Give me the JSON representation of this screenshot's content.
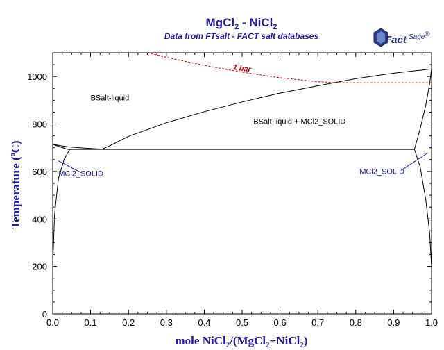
{
  "chart_data": {
    "type": "line",
    "title": {
      "main": "MgCl",
      "sub1": "2",
      "mid": " - NiCl",
      "sub2": "2"
    },
    "subtitle": "Data from FTsalt - FACT salt databases",
    "xlabel": {
      "p1": "mole NiCl",
      "s1": "2",
      "p2": "/(MgCl",
      "s2": "2",
      "p3": "+NiCl",
      "s3": "2",
      "p4": ")"
    },
    "ylabel": {
      "p1": "Temperature (",
      "deg": "o",
      "p2": "C)"
    },
    "xlim": [
      0,
      1
    ],
    "ylim": [
      0,
      1100
    ],
    "x_ticks": [
      "0.0",
      "0.1",
      "0.2",
      "0.3",
      "0.4",
      "0.5",
      "0.6",
      "0.7",
      "0.8",
      "0.9",
      "1.0"
    ],
    "x_tick_values": [
      0,
      0.1,
      0.2,
      0.3,
      0.4,
      0.5,
      0.6,
      0.7,
      0.8,
      0.9,
      1.0
    ],
    "y_ticks": [
      "0",
      "200",
      "400",
      "600",
      "800",
      "1000"
    ],
    "y_tick_values": [
      0,
      200,
      400,
      600,
      800,
      1000
    ],
    "grid": false,
    "series": [
      {
        "style": "liquidus-left",
        "color": "#000000",
        "x": [
          0.0,
          0.04,
          0.08,
          0.13
        ],
        "y": [
          714,
          704,
          699,
          694
        ]
      },
      {
        "style": "liquidus-right",
        "color": "#000000",
        "x": [
          0.13,
          0.15,
          0.2,
          0.3,
          0.4,
          0.5,
          0.6,
          0.7,
          0.8,
          0.9,
          1.0
        ],
        "y": [
          694,
          708,
          748,
          805,
          852,
          893,
          930,
          961,
          991,
          1014,
          1032
        ]
      },
      {
        "style": "solidus-mg",
        "color": "#000000",
        "x": [
          0.0,
          0.04,
          0.13
        ],
        "y": [
          714,
          693,
          693
        ]
      },
      {
        "style": "solvus-mg",
        "color": "#000000",
        "x": [
          0.0,
          0.005,
          0.015,
          0.03,
          0.045
        ],
        "y": [
          200,
          420,
          570,
          650,
          693
        ]
      },
      {
        "style": "eutectic-line",
        "color": "#000000",
        "x": [
          0.13,
          0.955
        ],
        "y": [
          693,
          693
        ]
      },
      {
        "style": "solidus-ni",
        "color": "#000000",
        "x": [
          0.955,
          0.97,
          0.985,
          0.995,
          1.0
        ],
        "y": [
          693,
          780,
          880,
          970,
          1032
        ]
      },
      {
        "style": "solvus-ni",
        "color": "#000000",
        "x": [
          0.955,
          0.97,
          0.985,
          0.995,
          1.0
        ],
        "y": [
          693,
          620,
          480,
          340,
          200
        ]
      },
      {
        "name": "1 bar",
        "style": "dashed-boiling",
        "color": "#cc0000",
        "x": [
          0.25,
          0.3,
          0.4,
          0.5,
          0.6,
          0.7,
          0.75,
          0.8,
          1.0
        ],
        "y": [
          1100,
          1081,
          1047,
          1018,
          995,
          978,
          974,
          974,
          974
        ]
      }
    ],
    "annotations": [
      {
        "text": "BSalt-liquid",
        "x": 0.1,
        "y": 900,
        "kind": "region"
      },
      {
        "text": "BSalt-liquid + MCl2_SOLID",
        "x": 0.53,
        "y": 800,
        "kind": "region"
      },
      {
        "text": "MCl2_SOLID",
        "x": 0.015,
        "y": 580,
        "kind": "phase",
        "pointer": [
          0.015,
          645,
          0.075,
          595
        ]
      },
      {
        "text": "MCl2_SOLID",
        "x": 0.81,
        "y": 590,
        "kind": "phase",
        "pointer": [
          0.92,
          605,
          0.99,
          678
        ]
      },
      {
        "text": "1 bar",
        "x": 0.475,
        "y": 1030,
        "kind": "bar"
      }
    ],
    "logo": {
      "main": "Fact",
      "sup": "Sage",
      "mark": "®"
    }
  }
}
